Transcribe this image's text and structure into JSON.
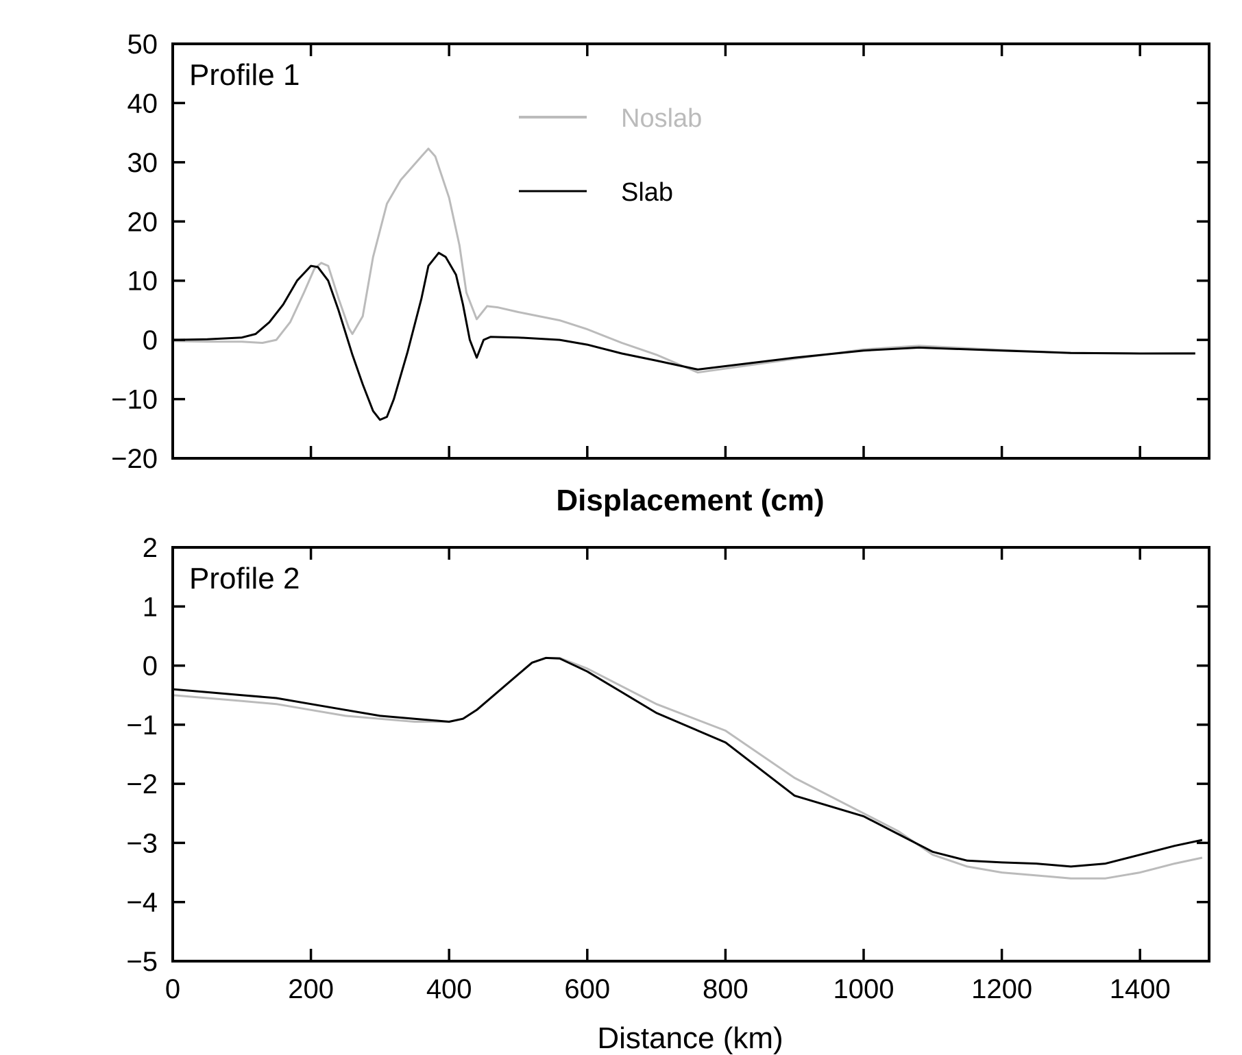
{
  "colors": {
    "noslab": "#bbbbbb",
    "slab": "#000000"
  },
  "legend": {
    "noslab_label": "Noslab",
    "slab_label": "Slab",
    "placement": "upper-center of top panel"
  },
  "shared": {
    "xlabel": "Distance (km)",
    "middle_title": "Displacement (cm)"
  },
  "chart_data": [
    {
      "type": "line",
      "title": "Profile 1",
      "xlabel": "",
      "ylabel": "",
      "xlim": [
        0,
        1500
      ],
      "ylim": [
        -20,
        50
      ],
      "xticks": [
        200,
        400,
        600,
        800,
        1000,
        1200,
        1400
      ],
      "yticks": [
        -20,
        -10,
        0,
        10,
        20,
        30,
        40,
        50
      ],
      "ytick_labels": [
        "−20",
        "−10",
        "0",
        "10",
        "20",
        "30",
        "40",
        "50"
      ],
      "show_xtick_labels": false,
      "grid": false,
      "series": [
        {
          "name": "Noslab",
          "color": "#bbbbbb",
          "x": [
            0,
            50,
            100,
            130,
            150,
            170,
            190,
            205,
            215,
            225,
            240,
            255,
            260,
            275,
            290,
            310,
            330,
            360,
            370,
            380,
            400,
            415,
            425,
            440,
            455,
            470,
            500,
            560,
            600,
            650,
            700,
            760,
            900,
            1000,
            1080,
            1200,
            1300,
            1400,
            1480
          ],
          "y": [
            -0.2,
            -0.3,
            -0.3,
            -0.5,
            0,
            3,
            8,
            12,
            13,
            12.5,
            7,
            2,
            1,
            4,
            14,
            23,
            27,
            31,
            32.3,
            31,
            24,
            16,
            8,
            3.5,
            5.7,
            5.5,
            4.7,
            3.3,
            1.8,
            -0.5,
            -2.5,
            -5.5,
            -3.2,
            -1.6,
            -1,
            -1.7,
            -2.2,
            -2.3,
            -2.2
          ]
        },
        {
          "name": "Slab",
          "color": "#000000",
          "x": [
            0,
            50,
            100,
            120,
            140,
            160,
            180,
            200,
            210,
            225,
            240,
            260,
            275,
            290,
            300,
            310,
            320,
            340,
            360,
            370,
            385,
            395,
            410,
            420,
            430,
            440,
            450,
            460,
            500,
            560,
            600,
            650,
            700,
            760,
            900,
            1000,
            1080,
            1200,
            1300,
            1400,
            1480
          ],
          "y": [
            0,
            0.1,
            0.4,
            1,
            3,
            6,
            10,
            12.5,
            12.3,
            10,
            5,
            -2.5,
            -7.5,
            -12,
            -13.5,
            -13,
            -10,
            -2,
            7,
            12.5,
            14.7,
            14,
            11,
            6,
            0,
            -3,
            0,
            0.5,
            0.4,
            0,
            -0.8,
            -2.3,
            -3.5,
            -5,
            -3,
            -1.8,
            -1.3,
            -1.8,
            -2.2,
            -2.3,
            -2.3
          ]
        }
      ]
    },
    {
      "type": "line",
      "title": "Profile 2",
      "xlabel": "Distance (km)",
      "ylabel": "",
      "xlim": [
        0,
        1500
      ],
      "ylim": [
        -5,
        2
      ],
      "xticks": [
        0,
        200,
        400,
        600,
        800,
        1000,
        1200,
        1400
      ],
      "yticks": [
        -5,
        -4,
        -3,
        -2,
        -1,
        0,
        1,
        2
      ],
      "ytick_labels": [
        "−5",
        "−4",
        "−3",
        "−2",
        "−1",
        "0",
        "1",
        "2"
      ],
      "show_xtick_labels": true,
      "grid": false,
      "series": [
        {
          "name": "Noslab",
          "color": "#bbbbbb",
          "x": [
            0,
            50,
            100,
            150,
            200,
            250,
            300,
            350,
            400,
            420,
            440,
            470,
            500,
            520,
            540,
            560,
            600,
            650,
            700,
            800,
            900,
            1000,
            1050,
            1100,
            1150,
            1200,
            1250,
            1300,
            1350,
            1400,
            1450,
            1490
          ],
          "y": [
            -0.5,
            -0.55,
            -0.6,
            -0.65,
            -0.75,
            -0.85,
            -0.9,
            -0.95,
            -0.95,
            -0.9,
            -0.75,
            -0.45,
            -0.15,
            0.05,
            0.13,
            0.13,
            -0.05,
            -0.35,
            -0.65,
            -1.1,
            -1.9,
            -2.5,
            -2.8,
            -3.2,
            -3.4,
            -3.5,
            -3.55,
            -3.6,
            -3.6,
            -3.5,
            -3.35,
            -3.25
          ]
        },
        {
          "name": "Slab",
          "color": "#000000",
          "x": [
            0,
            50,
            100,
            150,
            200,
            250,
            300,
            350,
            400,
            420,
            440,
            470,
            500,
            520,
            540,
            560,
            600,
            650,
            700,
            800,
            900,
            1000,
            1050,
            1100,
            1150,
            1200,
            1250,
            1300,
            1350,
            1400,
            1450,
            1490
          ],
          "y": [
            -0.4,
            -0.45,
            -0.5,
            -0.55,
            -0.65,
            -0.75,
            -0.85,
            -0.9,
            -0.95,
            -0.9,
            -0.75,
            -0.45,
            -0.15,
            0.05,
            0.13,
            0.12,
            -0.1,
            -0.45,
            -0.8,
            -1.3,
            -2.2,
            -2.55,
            -2.85,
            -3.15,
            -3.3,
            -3.33,
            -3.35,
            -3.4,
            -3.35,
            -3.2,
            -3.05,
            -2.95
          ]
        }
      ]
    }
  ]
}
